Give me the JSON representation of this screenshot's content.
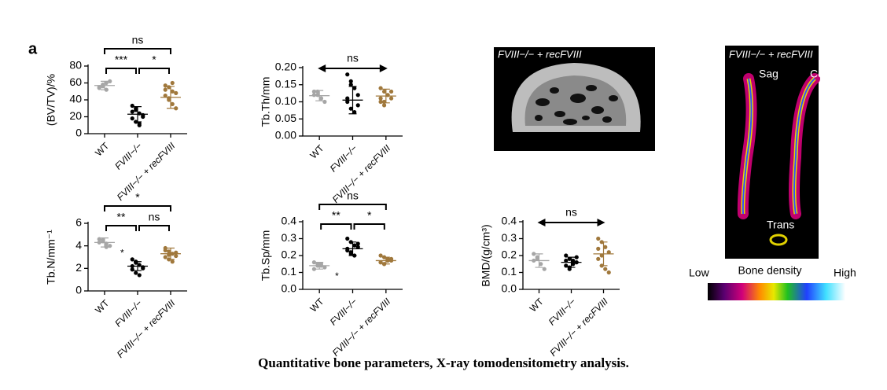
{
  "panel_label": "a",
  "chart_data": [
    {
      "type": "dot_plot",
      "ylabel": "(BV/TV)/%",
      "categories": [
        "WT",
        "FVIII−/−",
        "FVIII−/− + recFVIII"
      ],
      "colors": [
        "#a6a6a6",
        "#000000",
        "#a0783c"
      ],
      "values": [
        [
          55,
          58,
          60,
          62,
          54,
          56,
          52
        ],
        [
          33,
          28,
          24,
          22,
          18,
          14,
          10,
          20,
          26,
          30,
          12
        ],
        [
          57,
          55,
          50,
          48,
          45,
          40,
          35,
          30,
          52,
          42,
          60
        ]
      ],
      "means": [
        57,
        23,
        43
      ],
      "errors": [
        5,
        9,
        13
      ],
      "ylim": [
        0,
        80
      ],
      "yticks": [
        0,
        20,
        40,
        60,
        80
      ],
      "comparisons": [
        {
          "pair": [
            0,
            1
          ],
          "label": "***"
        },
        {
          "pair": [
            1,
            2
          ],
          "label": "*"
        },
        {
          "pair": [
            0,
            2
          ],
          "label": "ns"
        }
      ]
    },
    {
      "type": "dot_plot",
      "ylabel": "Tb.Th/mm",
      "categories": [
        "WT",
        "FVIII−/−",
        "FVIII−/− + recFVIII"
      ],
      "colors": [
        "#a6a6a6",
        "#000000",
        "#a0783c"
      ],
      "values": [
        [
          0.13,
          0.12,
          0.11,
          0.1,
          0.12,
          0.13,
          0.11
        ],
        [
          0.18,
          0.16,
          0.14,
          0.12,
          0.1,
          0.08,
          0.07,
          0.09,
          0.11,
          0.15
        ],
        [
          0.14,
          0.13,
          0.12,
          0.11,
          0.1,
          0.09,
          0.12,
          0.13,
          0.11,
          0.1
        ]
      ],
      "means": [
        0.118,
        0.105,
        0.117
      ],
      "errors": [
        0.015,
        0.04,
        0.02
      ],
      "ylim": [
        0,
        0.2
      ],
      "yticks": [
        {
          "value": 0,
          "label": "0.00"
        },
        0.05,
        {
          "value": 0.1,
          "label": "0.10"
        },
        0.15,
        {
          "value": 0.2,
          "label": "0.20"
        }
      ],
      "comparisons": [
        {
          "pair": [
            0,
            2
          ],
          "label": "ns",
          "style": "arrow"
        }
      ]
    },
    {
      "type": "dot_plot",
      "ylabel": "Tb.N/mm⁻¹",
      "categories": [
        "WT",
        "FVIII−/−",
        "FVIII−/− + recFVIII"
      ],
      "colors": [
        "#a6a6a6",
        "#000000",
        "#a0783c"
      ],
      "values": [
        [
          4.6,
          4.4,
          4.2,
          4.0,
          4.3,
          4.5,
          3.9
        ],
        [
          2.8,
          2.5,
          2.3,
          2.1,
          1.9,
          1.6,
          1.4,
          2.0,
          2.2,
          2.6
        ],
        [
          3.8,
          3.5,
          3.3,
          3.1,
          3.0,
          2.8,
          2.6,
          3.4,
          3.6,
          3.2
        ]
      ],
      "means": [
        4.3,
        2.2,
        3.3
      ],
      "errors": [
        0.4,
        0.4,
        0.5
      ],
      "ylim": [
        0,
        6
      ],
      "yticks": [
        0,
        2,
        4,
        6
      ],
      "side_mark": "*",
      "comparisons": [
        {
          "pair": [
            0,
            1
          ],
          "label": "**"
        },
        {
          "pair": [
            1,
            2
          ],
          "label": "ns"
        },
        {
          "pair": [
            0,
            2
          ],
          "label": "*"
        }
      ]
    },
    {
      "type": "dot_plot",
      "ylabel": "Tb.Sp/mm",
      "categories": [
        "WT",
        "FVIII−/−",
        "FVIII−/− + recFVIII"
      ],
      "colors": [
        "#a6a6a6",
        "#000000",
        "#a0783c"
      ],
      "values": [
        [
          0.16,
          0.15,
          0.14,
          0.13,
          0.12,
          0.14,
          0.15
        ],
        [
          0.3,
          0.28,
          0.26,
          0.25,
          0.24,
          0.22,
          0.2,
          0.27,
          0.23,
          0.21
        ],
        [
          0.2,
          0.19,
          0.18,
          0.17,
          0.16,
          0.15,
          0.17,
          0.18,
          0.16,
          0.15
        ]
      ],
      "means": [
        0.14,
        0.24,
        0.17
      ],
      "errors": [
        0.02,
        0.04,
        0.02
      ],
      "ylim": [
        0,
        0.4
      ],
      "yticks": [
        {
          "value": 0,
          "label": "0.0"
        },
        0.1,
        0.2,
        0.3,
        0.4
      ],
      "side_mark": "*",
      "comparisons": [
        {
          "pair": [
            0,
            1
          ],
          "label": "**"
        },
        {
          "pair": [
            1,
            2
          ],
          "label": "*"
        },
        {
          "pair": [
            0,
            2
          ],
          "label": "ns"
        }
      ]
    },
    {
      "type": "dot_plot",
      "ylabel": "BMD/(g/cm³)",
      "categories": [
        "WT",
        "FVIII−/−",
        "FVIII−/− + recFVIII"
      ],
      "colors": [
        "#a6a6a6",
        "#000000",
        "#a0783c"
      ],
      "values": [
        [
          0.21,
          0.18,
          0.15,
          0.12,
          0.17,
          0.19
        ],
        [
          0.2,
          0.18,
          0.17,
          0.16,
          0.14,
          0.12,
          0.15,
          0.19,
          0.17,
          0.13
        ],
        [
          0.3,
          0.28,
          0.25,
          0.22,
          0.18,
          0.14,
          0.12,
          0.1,
          0.24,
          0.2
        ]
      ],
      "means": [
        0.17,
        0.16,
        0.21
      ],
      "errors": [
        0.04,
        0.03,
        0.07
      ],
      "ylim": [
        0,
        0.4
      ],
      "yticks": [
        {
          "value": 0,
          "label": "0.0"
        },
        0.1,
        0.2,
        0.3,
        0.4
      ],
      "comparisons": [
        {
          "pair": [
            0,
            2
          ],
          "label": "ns",
          "style": "arrow"
        }
      ]
    }
  ],
  "images": [
    {
      "title": "FVIII−/− + recFVIII"
    },
    {
      "title": "FVIII−/− + recFVIII",
      "labels": [
        "Sag",
        "Cor",
        "Trans"
      ]
    }
  ],
  "colorbar": {
    "low": "Low",
    "title": "Bone density",
    "high": "High"
  },
  "caption": "Quantitative bone parameters, X-ray tomodensitometry analysis."
}
